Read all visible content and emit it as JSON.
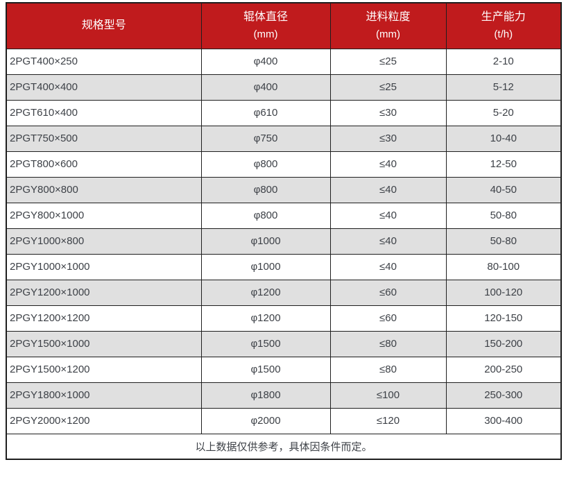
{
  "table": {
    "colors": {
      "header_bg": "#c01b1d",
      "header_text": "#ffffff",
      "row_bg": "#ffffff",
      "row_alt_bg": "#e0e0e0",
      "body_text": "#3d4147",
      "border": "#1e1e1e"
    },
    "columns": [
      {
        "title": "规格型号",
        "unit": ""
      },
      {
        "title": "辊体直径",
        "unit": "(mm)"
      },
      {
        "title": "进料粒度",
        "unit": "(mm)"
      },
      {
        "title": "生产能力",
        "unit": "(t/h)"
      }
    ],
    "rows": [
      [
        "2PGT400×250",
        "φ400",
        "≤25",
        "2-10"
      ],
      [
        "2PGT400×400",
        "φ400",
        "≤25",
        "5-12"
      ],
      [
        "2PGT610×400",
        "φ610",
        "≤30",
        "5-20"
      ],
      [
        "2PGT750×500",
        "φ750",
        "≤30",
        "10-40"
      ],
      [
        "2PGT800×600",
        "φ800",
        "≤40",
        "12-50"
      ],
      [
        "2PGY800×800",
        "φ800",
        "≤40",
        "40-50"
      ],
      [
        "2PGY800×1000",
        "φ800",
        "≤40",
        "50-80"
      ],
      [
        "2PGY1000×800",
        "φ1000",
        "≤40",
        "50-80"
      ],
      [
        "2PGY1000×1000",
        "φ1000",
        "≤40",
        "80-100"
      ],
      [
        "2PGY1200×1000",
        "φ1200",
        "≤60",
        "100-120"
      ],
      [
        "2PGY1200×1200",
        "φ1200",
        "≤60",
        "120-150"
      ],
      [
        "2PGY1500×1000",
        "φ1500",
        "≤80",
        "150-200"
      ],
      [
        "2PGY1500×1200",
        "φ1500",
        "≤80",
        "200-250"
      ],
      [
        "2PGY1800×1000",
        "φ1800",
        "≤100",
        "250-300"
      ],
      [
        "2PGY2000×1200",
        "φ2000",
        "≤120",
        "300-400"
      ]
    ],
    "note": "以上数据仅供参考，具体因条件而定。"
  }
}
